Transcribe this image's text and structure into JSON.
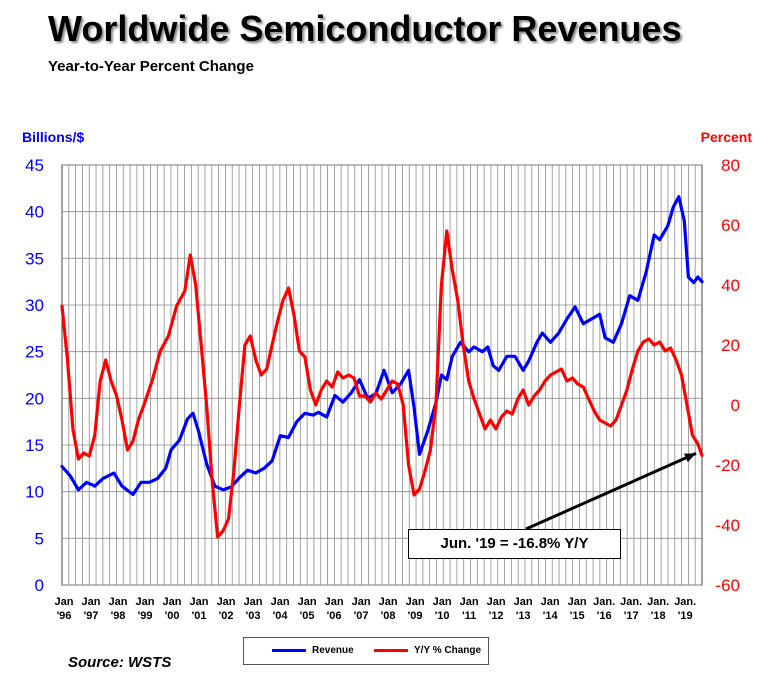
{
  "title": "Worldwide Semiconductor Revenues",
  "subtitle": "Year-to-Year Percent Change",
  "source": "Source: WSTS",
  "callout": "Jun. '19 = -16.8% Y/Y",
  "colors": {
    "revenue": "#0000ff",
    "yoy": "#ff0000",
    "grid": "#999999"
  },
  "chart_data": {
    "type": "line",
    "grid": true,
    "legend_placement": "bottom",
    "x_tick_labels": [
      [
        "Jan",
        "'96"
      ],
      [
        "Jan",
        "'97"
      ],
      [
        "Jan",
        "'98"
      ],
      [
        "Jan",
        "'99"
      ],
      [
        "Jan",
        "'00"
      ],
      [
        "Jan",
        "'01"
      ],
      [
        "Jan",
        "'02"
      ],
      [
        "Jan",
        "'03"
      ],
      [
        "Jan",
        "'04"
      ],
      [
        "Jan",
        "'05"
      ],
      [
        "Jan",
        "'06"
      ],
      [
        "Jan",
        "'07"
      ],
      [
        "Jan",
        "'08"
      ],
      [
        "Jan",
        "'09"
      ],
      [
        "Jan",
        "'10"
      ],
      [
        "Jan",
        "'11"
      ],
      [
        "Jan",
        "'12"
      ],
      [
        "Jan",
        "'13"
      ],
      [
        "Jan",
        "'14"
      ],
      [
        "Jan",
        "'15"
      ],
      [
        "Jan.",
        "'16"
      ],
      [
        "Jan.",
        "'17"
      ],
      [
        "Jan.",
        "'18"
      ],
      [
        "Jan.",
        "'19"
      ]
    ],
    "x_start": 1996.0,
    "x_end": 2019.45,
    "left_axis": {
      "label": "Billions/$",
      "min": 0,
      "max": 45,
      "ticks": [
        0,
        5,
        10,
        15,
        20,
        25,
        30,
        35,
        40,
        45
      ]
    },
    "right_axis": {
      "label": "Percent",
      "min": -60,
      "max": 80,
      "ticks": [
        -60,
        -40,
        -20,
        0,
        20,
        40,
        60,
        80
      ]
    },
    "series": [
      {
        "name": "Revenue",
        "axis": "left",
        "points": [
          [
            1996.0,
            12.7
          ],
          [
            1996.3,
            11.7
          ],
          [
            1996.6,
            10.2
          ],
          [
            1996.9,
            11.0
          ],
          [
            1997.2,
            10.6
          ],
          [
            1997.5,
            11.4
          ],
          [
            1997.9,
            12.0
          ],
          [
            1998.2,
            10.6
          ],
          [
            1998.6,
            9.7
          ],
          [
            1998.9,
            11.0
          ],
          [
            1999.2,
            11.0
          ],
          [
            1999.5,
            11.4
          ],
          [
            1999.8,
            12.5
          ],
          [
            2000.0,
            14.5
          ],
          [
            2000.3,
            15.5
          ],
          [
            2000.6,
            17.8
          ],
          [
            2000.8,
            18.4
          ],
          [
            2001.0,
            16.5
          ],
          [
            2001.3,
            13.0
          ],
          [
            2001.6,
            10.6
          ],
          [
            2001.9,
            10.2
          ],
          [
            2002.2,
            10.5
          ],
          [
            2002.5,
            11.5
          ],
          [
            2002.8,
            12.3
          ],
          [
            2003.1,
            12.0
          ],
          [
            2003.4,
            12.5
          ],
          [
            2003.7,
            13.3
          ],
          [
            2004.0,
            16.0
          ],
          [
            2004.3,
            15.8
          ],
          [
            2004.6,
            17.5
          ],
          [
            2004.9,
            18.4
          ],
          [
            2005.2,
            18.2
          ],
          [
            2005.4,
            18.5
          ],
          [
            2005.7,
            18.0
          ],
          [
            2006.0,
            20.3
          ],
          [
            2006.3,
            19.6
          ],
          [
            2006.6,
            20.6
          ],
          [
            2006.9,
            22.0
          ],
          [
            2007.2,
            20.0
          ],
          [
            2007.5,
            20.5
          ],
          [
            2007.8,
            23.0
          ],
          [
            2008.1,
            20.6
          ],
          [
            2008.4,
            21.5
          ],
          [
            2008.7,
            23.0
          ],
          [
            2008.9,
            19.0
          ],
          [
            2009.1,
            14.0
          ],
          [
            2009.4,
            16.5
          ],
          [
            2009.7,
            19.5
          ],
          [
            2009.9,
            22.5
          ],
          [
            2010.1,
            22.0
          ],
          [
            2010.3,
            24.5
          ],
          [
            2010.6,
            26.0
          ],
          [
            2010.9,
            25.0
          ],
          [
            2011.1,
            25.5
          ],
          [
            2011.4,
            25.0
          ],
          [
            2011.6,
            25.5
          ],
          [
            2011.8,
            23.5
          ],
          [
            2012.0,
            23.0
          ],
          [
            2012.3,
            24.5
          ],
          [
            2012.6,
            24.5
          ],
          [
            2012.9,
            23.0
          ],
          [
            2013.1,
            24.0
          ],
          [
            2013.4,
            26.0
          ],
          [
            2013.6,
            27.0
          ],
          [
            2013.9,
            26.0
          ],
          [
            2014.2,
            27.0
          ],
          [
            2014.5,
            28.5
          ],
          [
            2014.8,
            29.8
          ],
          [
            2015.1,
            28.0
          ],
          [
            2015.4,
            28.5
          ],
          [
            2015.7,
            29.0
          ],
          [
            2015.9,
            26.5
          ],
          [
            2016.2,
            26.0
          ],
          [
            2016.5,
            28.0
          ],
          [
            2016.8,
            31.0
          ],
          [
            2017.1,
            30.5
          ],
          [
            2017.4,
            33.5
          ],
          [
            2017.7,
            37.5
          ],
          [
            2017.9,
            37.0
          ],
          [
            2018.2,
            38.5
          ],
          [
            2018.4,
            40.5
          ],
          [
            2018.6,
            41.6
          ],
          [
            2018.8,
            39.0
          ],
          [
            2018.95,
            33.0
          ],
          [
            2019.15,
            32.4
          ],
          [
            2019.3,
            33.0
          ],
          [
            2019.45,
            32.5
          ]
        ]
      },
      {
        "name": "Y/Y % Change",
        "axis": "right",
        "points": [
          [
            1996.0,
            33
          ],
          [
            1996.2,
            15
          ],
          [
            1996.4,
            -8
          ],
          [
            1996.6,
            -18
          ],
          [
            1996.8,
            -16
          ],
          [
            1997.0,
            -17
          ],
          [
            1997.2,
            -10
          ],
          [
            1997.4,
            8
          ],
          [
            1997.6,
            15
          ],
          [
            1997.8,
            8
          ],
          [
            1998.0,
            3
          ],
          [
            1998.2,
            -5
          ],
          [
            1998.4,
            -15
          ],
          [
            1998.6,
            -12
          ],
          [
            1998.8,
            -5
          ],
          [
            1999.0,
            0
          ],
          [
            1999.3,
            8
          ],
          [
            1999.6,
            18
          ],
          [
            1999.9,
            23
          ],
          [
            2000.2,
            33
          ],
          [
            2000.5,
            38
          ],
          [
            2000.7,
            50
          ],
          [
            2000.9,
            40
          ],
          [
            2001.1,
            20
          ],
          [
            2001.3,
            0
          ],
          [
            2001.5,
            -25
          ],
          [
            2001.7,
            -44
          ],
          [
            2001.9,
            -42
          ],
          [
            2002.1,
            -38
          ],
          [
            2002.3,
            -22
          ],
          [
            2002.5,
            0
          ],
          [
            2002.7,
            20
          ],
          [
            2002.9,
            23
          ],
          [
            2003.1,
            15
          ],
          [
            2003.3,
            10
          ],
          [
            2003.5,
            12
          ],
          [
            2003.7,
            20
          ],
          [
            2003.9,
            28
          ],
          [
            2004.1,
            35
          ],
          [
            2004.3,
            39
          ],
          [
            2004.5,
            30
          ],
          [
            2004.7,
            18
          ],
          [
            2004.9,
            16
          ],
          [
            2005.1,
            5
          ],
          [
            2005.3,
            0
          ],
          [
            2005.5,
            5
          ],
          [
            2005.7,
            8
          ],
          [
            2005.9,
            6
          ],
          [
            2006.1,
            11
          ],
          [
            2006.3,
            9
          ],
          [
            2006.5,
            10
          ],
          [
            2006.7,
            9
          ],
          [
            2006.9,
            3
          ],
          [
            2007.1,
            3
          ],
          [
            2007.3,
            1
          ],
          [
            2007.5,
            4
          ],
          [
            2007.7,
            2
          ],
          [
            2007.9,
            5
          ],
          [
            2008.1,
            8
          ],
          [
            2008.3,
            7
          ],
          [
            2008.5,
            0
          ],
          [
            2008.7,
            -20
          ],
          [
            2008.9,
            -30
          ],
          [
            2009.1,
            -28
          ],
          [
            2009.3,
            -22
          ],
          [
            2009.5,
            -15
          ],
          [
            2009.7,
            0
          ],
          [
            2009.9,
            40
          ],
          [
            2010.1,
            58
          ],
          [
            2010.3,
            45
          ],
          [
            2010.5,
            35
          ],
          [
            2010.7,
            20
          ],
          [
            2010.9,
            8
          ],
          [
            2011.1,
            2
          ],
          [
            2011.3,
            -3
          ],
          [
            2011.5,
            -8
          ],
          [
            2011.7,
            -5
          ],
          [
            2011.9,
            -8
          ],
          [
            2012.1,
            -4
          ],
          [
            2012.3,
            -2
          ],
          [
            2012.5,
            -3
          ],
          [
            2012.7,
            2
          ],
          [
            2012.9,
            5
          ],
          [
            2013.1,
            0
          ],
          [
            2013.3,
            3
          ],
          [
            2013.5,
            5
          ],
          [
            2013.7,
            8
          ],
          [
            2013.9,
            10
          ],
          [
            2014.1,
            11
          ],
          [
            2014.3,
            12
          ],
          [
            2014.5,
            8
          ],
          [
            2014.7,
            9
          ],
          [
            2014.9,
            7
          ],
          [
            2015.1,
            6
          ],
          [
            2015.3,
            2
          ],
          [
            2015.5,
            -2
          ],
          [
            2015.7,
            -5
          ],
          [
            2015.9,
            -6
          ],
          [
            2016.1,
            -7
          ],
          [
            2016.3,
            -5
          ],
          [
            2016.5,
            0
          ],
          [
            2016.7,
            5
          ],
          [
            2016.9,
            12
          ],
          [
            2017.1,
            18
          ],
          [
            2017.3,
            21
          ],
          [
            2017.5,
            22
          ],
          [
            2017.7,
            20
          ],
          [
            2017.9,
            21
          ],
          [
            2018.1,
            18
          ],
          [
            2018.3,
            19
          ],
          [
            2018.5,
            15
          ],
          [
            2018.7,
            10
          ],
          [
            2018.9,
            0
          ],
          [
            2019.1,
            -10
          ],
          [
            2019.3,
            -13
          ],
          [
            2019.45,
            -16.8
          ]
        ]
      }
    ]
  }
}
